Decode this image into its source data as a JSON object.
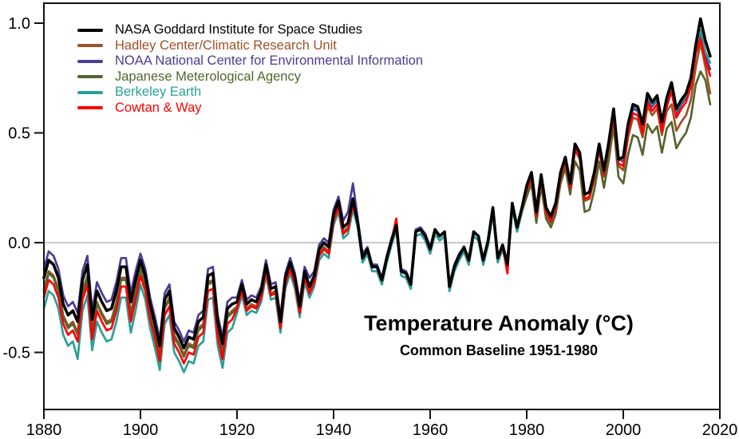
{
  "chart_data": {
    "type": "line",
    "title": "Temperature Anomaly (°C)",
    "subtitle": "Common Baseline 1951-1980",
    "xlabel": "",
    "ylabel": "",
    "xlim": [
      1880,
      2020
    ],
    "ylim": [
      -0.76,
      1.09
    ],
    "x_ticks": [
      1880,
      1900,
      1920,
      1940,
      1960,
      1980,
      2000,
      2020
    ],
    "y_ticks": [
      1.0,
      0.5,
      0.0,
      -0.5
    ],
    "grid": false,
    "zero_line": true,
    "zero_line_color": "#c8c8c8",
    "axis_color": "#111111",
    "legend_position": "top-left",
    "years": [
      1880,
      1881,
      1882,
      1883,
      1884,
      1885,
      1886,
      1887,
      1888,
      1889,
      1890,
      1891,
      1892,
      1893,
      1894,
      1895,
      1896,
      1897,
      1898,
      1899,
      1900,
      1901,
      1902,
      1903,
      1904,
      1905,
      1906,
      1907,
      1908,
      1909,
      1910,
      1911,
      1912,
      1913,
      1914,
      1915,
      1916,
      1917,
      1918,
      1919,
      1920,
      1921,
      1922,
      1923,
      1924,
      1925,
      1926,
      1927,
      1928,
      1929,
      1930,
      1931,
      1932,
      1933,
      1934,
      1935,
      1936,
      1937,
      1938,
      1939,
      1940,
      1941,
      1942,
      1943,
      1944,
      1945,
      1946,
      1947,
      1948,
      1949,
      1950,
      1951,
      1952,
      1953,
      1954,
      1955,
      1956,
      1957,
      1958,
      1959,
      1960,
      1961,
      1962,
      1963,
      1964,
      1965,
      1966,
      1967,
      1968,
      1969,
      1970,
      1971,
      1972,
      1973,
      1974,
      1975,
      1976,
      1977,
      1978,
      1979,
      1980,
      1981,
      1982,
      1983,
      1984,
      1985,
      1986,
      1987,
      1988,
      1989,
      1990,
      1991,
      1992,
      1993,
      1994,
      1995,
      1996,
      1997,
      1998,
      1999,
      2000,
      2001,
      2002,
      2003,
      2004,
      2005,
      2006,
      2007,
      2008,
      2009,
      2010,
      2011,
      2012,
      2013,
      2014,
      2015,
      2016,
      2017,
      2018
    ],
    "series": [
      {
        "id": "nasa-giss",
        "name": "NASA Goddard Institute for Space Studies",
        "color": "#000000",
        "values": [
          -0.16,
          -0.08,
          -0.1,
          -0.16,
          -0.28,
          -0.33,
          -0.31,
          -0.36,
          -0.17,
          -0.1,
          -0.35,
          -0.22,
          -0.27,
          -0.31,
          -0.3,
          -0.22,
          -0.11,
          -0.11,
          -0.27,
          -0.17,
          -0.08,
          -0.15,
          -0.28,
          -0.37,
          -0.47,
          -0.26,
          -0.22,
          -0.39,
          -0.43,
          -0.48,
          -0.43,
          -0.44,
          -0.36,
          -0.34,
          -0.15,
          -0.14,
          -0.36,
          -0.46,
          -0.3,
          -0.28,
          -0.27,
          -0.19,
          -0.28,
          -0.26,
          -0.27,
          -0.22,
          -0.1,
          -0.21,
          -0.2,
          -0.36,
          -0.16,
          -0.09,
          -0.16,
          -0.29,
          -0.13,
          -0.2,
          -0.15,
          -0.03,
          0.0,
          -0.02,
          0.13,
          0.19,
          0.07,
          0.09,
          0.2,
          0.09,
          -0.07,
          -0.03,
          -0.11,
          -0.11,
          -0.17,
          -0.07,
          0.01,
          0.08,
          -0.13,
          -0.14,
          -0.19,
          0.05,
          0.06,
          0.03,
          -0.03,
          0.06,
          0.03,
          0.05,
          -0.2,
          -0.11,
          -0.06,
          -0.02,
          -0.08,
          0.05,
          0.03,
          -0.08,
          0.01,
          0.16,
          -0.07,
          -0.01,
          -0.1,
          0.18,
          0.07,
          0.16,
          0.26,
          0.32,
          0.14,
          0.31,
          0.16,
          0.12,
          0.18,
          0.32,
          0.39,
          0.27,
          0.45,
          0.41,
          0.22,
          0.23,
          0.32,
          0.45,
          0.33,
          0.46,
          0.61,
          0.38,
          0.39,
          0.54,
          0.63,
          0.62,
          0.54,
          0.68,
          0.64,
          0.67,
          0.55,
          0.66,
          0.73,
          0.61,
          0.65,
          0.68,
          0.75,
          0.9,
          1.02,
          0.92,
          0.85
        ]
      },
      {
        "id": "hadley-cru",
        "name": "Hadley Center/Climatic Research Unit",
        "color": "#9e5126",
        "values": [
          -0.21,
          -0.13,
          -0.15,
          -0.21,
          -0.33,
          -0.38,
          -0.36,
          -0.41,
          -0.22,
          -0.15,
          -0.4,
          -0.27,
          -0.32,
          -0.36,
          -0.35,
          -0.27,
          -0.16,
          -0.16,
          -0.32,
          -0.22,
          -0.11,
          -0.18,
          -0.31,
          -0.4,
          -0.5,
          -0.29,
          -0.25,
          -0.42,
          -0.46,
          -0.51,
          -0.46,
          -0.47,
          -0.39,
          -0.37,
          -0.18,
          -0.17,
          -0.39,
          -0.49,
          -0.33,
          -0.31,
          -0.29,
          -0.21,
          -0.3,
          -0.28,
          -0.29,
          -0.24,
          -0.12,
          -0.23,
          -0.22,
          -0.38,
          -0.18,
          -0.11,
          -0.18,
          -0.31,
          -0.15,
          -0.22,
          -0.17,
          -0.05,
          -0.02,
          -0.04,
          0.11,
          0.17,
          0.05,
          0.07,
          0.18,
          0.09,
          -0.07,
          -0.03,
          -0.11,
          -0.11,
          -0.17,
          -0.07,
          0.01,
          0.08,
          -0.13,
          -0.14,
          -0.19,
          0.05,
          0.06,
          0.03,
          -0.03,
          0.06,
          0.03,
          0.05,
          -0.2,
          -0.11,
          -0.06,
          -0.02,
          -0.08,
          0.05,
          0.03,
          -0.08,
          0.01,
          0.16,
          -0.07,
          -0.01,
          -0.1,
          0.18,
          0.07,
          0.16,
          0.23,
          0.29,
          0.11,
          0.28,
          0.13,
          0.09,
          0.15,
          0.29,
          0.36,
          0.24,
          0.42,
          0.38,
          0.19,
          0.2,
          0.29,
          0.42,
          0.3,
          0.43,
          0.58,
          0.35,
          0.33,
          0.48,
          0.57,
          0.56,
          0.48,
          0.62,
          0.58,
          0.61,
          0.49,
          0.6,
          0.63,
          0.51,
          0.55,
          0.58,
          0.65,
          0.8,
          0.91,
          0.8,
          0.68
        ]
      },
      {
        "id": "noaa-ncei",
        "name": "NOAA National Center for Environmental Information",
        "color": "#4a3c96",
        "values": [
          -0.12,
          -0.04,
          -0.06,
          -0.12,
          -0.24,
          -0.29,
          -0.27,
          -0.32,
          -0.13,
          -0.06,
          -0.31,
          -0.18,
          -0.23,
          -0.27,
          -0.26,
          -0.18,
          -0.07,
          -0.07,
          -0.23,
          -0.13,
          -0.05,
          -0.12,
          -0.25,
          -0.34,
          -0.44,
          -0.23,
          -0.19,
          -0.36,
          -0.4,
          -0.45,
          -0.4,
          -0.41,
          -0.33,
          -0.31,
          -0.12,
          -0.11,
          -0.33,
          -0.43,
          -0.27,
          -0.25,
          -0.25,
          -0.17,
          -0.26,
          -0.24,
          -0.25,
          -0.2,
          -0.08,
          -0.19,
          -0.18,
          -0.34,
          -0.14,
          -0.07,
          -0.14,
          -0.27,
          -0.11,
          -0.16,
          -0.13,
          -0.01,
          0.02,
          0.0,
          0.15,
          0.21,
          0.1,
          0.14,
          0.27,
          0.11,
          -0.05,
          -0.02,
          -0.1,
          -0.1,
          -0.16,
          -0.06,
          0.02,
          0.09,
          -0.12,
          -0.13,
          -0.18,
          0.06,
          0.07,
          0.04,
          -0.02,
          0.06,
          0.03,
          0.05,
          -0.19,
          -0.1,
          -0.05,
          -0.02,
          -0.07,
          0.05,
          0.03,
          -0.08,
          0.01,
          0.16,
          -0.07,
          -0.01,
          -0.09,
          0.18,
          0.07,
          0.16,
          0.26,
          0.32,
          0.14,
          0.31,
          0.16,
          0.12,
          0.18,
          0.32,
          0.39,
          0.27,
          0.44,
          0.4,
          0.22,
          0.23,
          0.31,
          0.44,
          0.32,
          0.45,
          0.6,
          0.38,
          0.37,
          0.52,
          0.61,
          0.6,
          0.52,
          0.66,
          0.62,
          0.65,
          0.53,
          0.64,
          0.71,
          0.59,
          0.63,
          0.66,
          0.73,
          0.88,
          0.95,
          0.85,
          0.79
        ]
      },
      {
        "id": "jma",
        "name": "Japanese Meterological Agency",
        "color": "#55652e",
        "values": [
          -0.22,
          -0.14,
          -0.16,
          -0.22,
          -0.34,
          -0.39,
          -0.37,
          -0.42,
          -0.23,
          -0.16,
          -0.41,
          -0.28,
          -0.33,
          -0.37,
          -0.36,
          -0.28,
          -0.17,
          -0.17,
          -0.33,
          -0.23,
          -0.12,
          -0.19,
          -0.32,
          -0.41,
          -0.51,
          -0.3,
          -0.26,
          -0.43,
          -0.47,
          -0.52,
          -0.47,
          -0.48,
          -0.4,
          -0.38,
          -0.19,
          -0.18,
          -0.4,
          -0.5,
          -0.34,
          -0.32,
          -0.3,
          -0.22,
          -0.31,
          -0.29,
          -0.3,
          -0.25,
          -0.13,
          -0.24,
          -0.23,
          -0.39,
          -0.19,
          -0.12,
          -0.19,
          -0.32,
          -0.16,
          -0.23,
          -0.18,
          -0.06,
          -0.03,
          -0.05,
          0.1,
          0.16,
          0.04,
          0.06,
          0.17,
          0.07,
          -0.09,
          -0.05,
          -0.13,
          -0.13,
          -0.19,
          -0.09,
          -0.01,
          0.06,
          -0.15,
          -0.16,
          -0.21,
          0.03,
          0.04,
          0.01,
          -0.05,
          0.04,
          0.01,
          0.03,
          -0.22,
          -0.13,
          -0.08,
          -0.04,
          -0.1,
          0.03,
          0.01,
          -0.1,
          -0.01,
          0.14,
          -0.09,
          -0.03,
          -0.12,
          0.16,
          0.05,
          0.14,
          0.21,
          0.27,
          0.09,
          0.26,
          0.11,
          0.07,
          0.13,
          0.27,
          0.34,
          0.22,
          0.37,
          0.33,
          0.14,
          0.15,
          0.24,
          0.37,
          0.25,
          0.38,
          0.53,
          0.3,
          0.27,
          0.4,
          0.49,
          0.48,
          0.4,
          0.54,
          0.5,
          0.53,
          0.41,
          0.52,
          0.55,
          0.43,
          0.47,
          0.5,
          0.57,
          0.72,
          0.78,
          0.74,
          0.63
        ]
      },
      {
        "id": "berkeley-earth",
        "name": "Berkeley Earth",
        "color": "#2aa099",
        "values": [
          -0.3,
          -0.22,
          -0.24,
          -0.3,
          -0.42,
          -0.47,
          -0.45,
          -0.53,
          -0.31,
          -0.24,
          -0.49,
          -0.36,
          -0.41,
          -0.45,
          -0.44,
          -0.36,
          -0.25,
          -0.25,
          -0.41,
          -0.31,
          -0.19,
          -0.26,
          -0.39,
          -0.48,
          -0.58,
          -0.37,
          -0.33,
          -0.5,
          -0.54,
          -0.59,
          -0.54,
          -0.55,
          -0.47,
          -0.45,
          -0.26,
          -0.25,
          -0.47,
          -0.57,
          -0.41,
          -0.39,
          -0.32,
          -0.24,
          -0.33,
          -0.31,
          -0.32,
          -0.27,
          -0.15,
          -0.26,
          -0.25,
          -0.41,
          -0.21,
          -0.14,
          -0.21,
          -0.34,
          -0.18,
          -0.25,
          -0.2,
          -0.08,
          -0.05,
          -0.07,
          0.08,
          0.14,
          0.02,
          0.04,
          0.15,
          0.07,
          -0.09,
          -0.05,
          -0.13,
          -0.13,
          -0.19,
          -0.09,
          -0.01,
          0.06,
          -0.15,
          -0.16,
          -0.21,
          0.03,
          0.04,
          0.01,
          -0.05,
          0.04,
          0.01,
          0.03,
          -0.22,
          -0.13,
          -0.08,
          -0.04,
          -0.1,
          0.03,
          0.01,
          -0.1,
          -0.01,
          0.14,
          -0.09,
          -0.03,
          -0.12,
          0.16,
          0.05,
          0.14,
          0.26,
          0.32,
          0.14,
          0.31,
          0.16,
          0.12,
          0.18,
          0.32,
          0.39,
          0.27,
          0.45,
          0.41,
          0.22,
          0.23,
          0.32,
          0.45,
          0.33,
          0.46,
          0.61,
          0.38,
          0.38,
          0.53,
          0.62,
          0.61,
          0.53,
          0.67,
          0.63,
          0.66,
          0.54,
          0.65,
          0.72,
          0.6,
          0.64,
          0.67,
          0.74,
          0.89,
          0.97,
          0.87,
          0.82
        ]
      },
      {
        "id": "cowtan-way",
        "name": "Cowtan & Way",
        "color": "#ff0000",
        "values": [
          -0.25,
          -0.17,
          -0.19,
          -0.25,
          -0.37,
          -0.42,
          -0.4,
          -0.45,
          -0.26,
          -0.19,
          -0.44,
          -0.31,
          -0.36,
          -0.4,
          -0.39,
          -0.31,
          -0.2,
          -0.2,
          -0.36,
          -0.26,
          -0.15,
          -0.22,
          -0.35,
          -0.44,
          -0.54,
          -0.33,
          -0.29,
          -0.46,
          -0.5,
          -0.55,
          -0.5,
          -0.51,
          -0.43,
          -0.41,
          -0.22,
          -0.21,
          -0.43,
          -0.53,
          -0.37,
          -0.35,
          -0.3,
          -0.22,
          -0.31,
          -0.29,
          -0.3,
          -0.25,
          -0.13,
          -0.24,
          -0.23,
          -0.39,
          -0.19,
          -0.12,
          -0.19,
          -0.32,
          -0.16,
          -0.23,
          -0.18,
          -0.06,
          -0.03,
          -0.05,
          0.1,
          0.16,
          0.04,
          0.06,
          0.17,
          0.09,
          -0.07,
          -0.03,
          -0.11,
          -0.11,
          -0.17,
          -0.07,
          0.01,
          0.11,
          -0.13,
          -0.14,
          -0.19,
          0.05,
          0.06,
          0.03,
          -0.03,
          0.06,
          0.03,
          0.05,
          -0.2,
          -0.11,
          -0.06,
          -0.02,
          -0.08,
          0.05,
          0.03,
          -0.08,
          0.01,
          0.16,
          -0.07,
          -0.01,
          -0.14,
          0.18,
          0.07,
          0.16,
          0.24,
          0.3,
          0.12,
          0.29,
          0.14,
          0.1,
          0.16,
          0.3,
          0.37,
          0.25,
          0.43,
          0.39,
          0.2,
          0.21,
          0.3,
          0.43,
          0.31,
          0.44,
          0.57,
          0.36,
          0.35,
          0.5,
          0.59,
          0.58,
          0.5,
          0.64,
          0.6,
          0.63,
          0.51,
          0.62,
          0.69,
          0.57,
          0.61,
          0.64,
          0.71,
          0.86,
          0.93,
          0.83,
          0.76
        ]
      }
    ]
  }
}
